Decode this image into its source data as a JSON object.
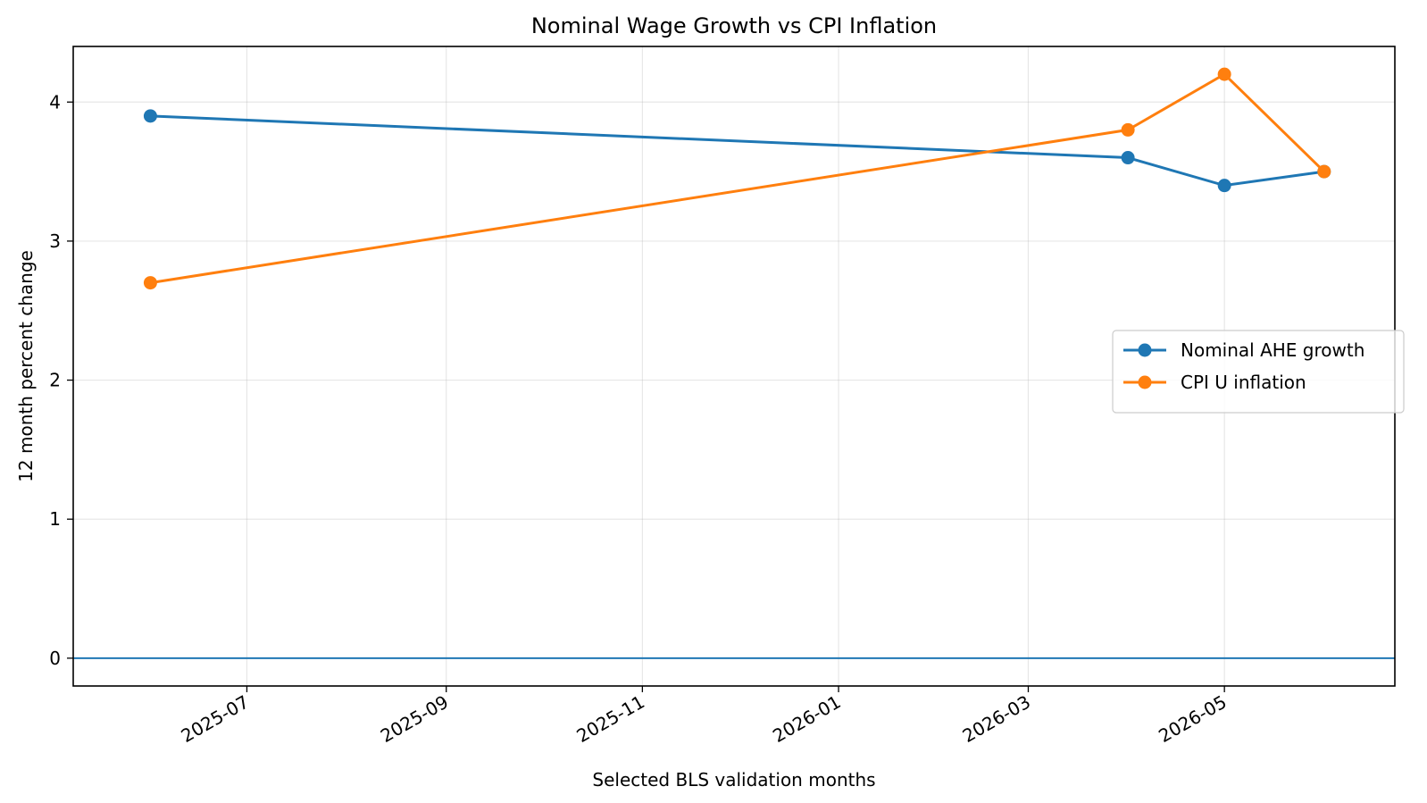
{
  "chart_data": {
    "type": "line",
    "title": "Nominal Wage Growth vs CPI Inflation",
    "xlabel": "Selected BLS validation months",
    "ylabel": "12 month percent change",
    "x": [
      "2025-06",
      "2026-04",
      "2026-05",
      "2026-06"
    ],
    "xlim": [
      "2025-05-08",
      "2026-06-23"
    ],
    "ylim": [
      -0.2,
      4.4
    ],
    "x_ticks": [
      "2025-07",
      "2025-09",
      "2025-11",
      "2026-01",
      "2026-03",
      "2026-05"
    ],
    "y_ticks": [
      0,
      1,
      2,
      3,
      4
    ],
    "grid": true,
    "legend_position": "center-right",
    "reference_line": {
      "y": 0,
      "color": "#1f77b4"
    },
    "series": [
      {
        "name": "Nominal AHE growth",
        "color": "#1f77b4",
        "values": [
          3.9,
          3.6,
          3.4,
          3.5
        ]
      },
      {
        "name": "CPI U inflation",
        "color": "#ff7f0e",
        "values": [
          2.7,
          3.8,
          4.2,
          3.5
        ]
      }
    ]
  }
}
